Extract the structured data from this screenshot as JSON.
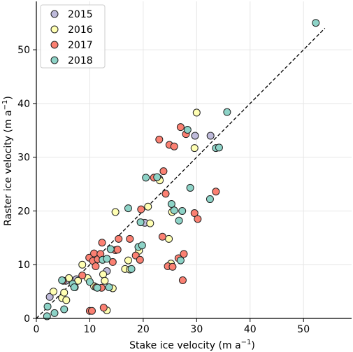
{
  "chart_data": {
    "type": "scatter",
    "xlabel": "Stake ice velocity (m a",
    "ylabel": "Raster ice velocity (m a",
    "unit_superscript": "−1",
    "unit_close": ")",
    "xlim": [
      0,
      59
    ],
    "ylim": [
      0,
      59
    ],
    "x_ticks": [
      0,
      10,
      20,
      30,
      40,
      50
    ],
    "y_ticks": [
      0,
      10,
      20,
      30,
      40,
      50
    ],
    "grid": true,
    "legend_position": "top-left",
    "reference_line": {
      "style": "dashed",
      "from": [
        0,
        0
      ],
      "to": [
        54,
        54
      ]
    },
    "series": [
      {
        "name": "2015",
        "color": "#bebada",
        "points": [
          [
            2.5,
            4
          ],
          [
            5.5,
            7
          ],
          [
            7.5,
            7.3
          ],
          [
            13.2,
            8.8
          ],
          [
            20.3,
            17.8
          ],
          [
            23,
            26
          ],
          [
            29.7,
            34
          ],
          [
            32.6,
            34
          ]
        ]
      },
      {
        "name": "2016",
        "color": "#ffffb3",
        "points": [
          [
            3.2,
            5
          ],
          [
            4.8,
            3.8
          ],
          [
            5.2,
            4.8
          ],
          [
            5.6,
            3.4
          ],
          [
            6.1,
            7.5
          ],
          [
            7.2,
            5.8
          ],
          [
            7.8,
            7
          ],
          [
            8.6,
            10
          ],
          [
            9.6,
            7.5
          ],
          [
            10.8,
            6
          ],
          [
            12.5,
            8.2
          ],
          [
            12.8,
            7
          ],
          [
            13.2,
            1.5
          ],
          [
            14.3,
            5.6
          ],
          [
            14.8,
            19.8
          ],
          [
            16.6,
            9.2
          ],
          [
            17.2,
            10.8
          ],
          [
            17.5,
            9.1
          ],
          [
            19.2,
            12.6
          ],
          [
            20.9,
            20.8
          ],
          [
            21.3,
            17.7
          ],
          [
            23.1,
            25.7
          ],
          [
            24.8,
            14.8
          ],
          [
            25.2,
            10.2
          ],
          [
            25.4,
            19.8
          ],
          [
            29.6,
            31.7
          ],
          [
            30,
            38.3
          ]
        ]
      },
      {
        "name": "2017",
        "color": "#fb8072",
        "points": [
          [
            5,
            7
          ],
          [
            8.6,
            8
          ],
          [
            9.9,
            11.3
          ],
          [
            10,
            1.4
          ],
          [
            10.4,
            1.4
          ],
          [
            10.6,
            10.7
          ],
          [
            10.8,
            12.1
          ],
          [
            11.1,
            9.7
          ],
          [
            11.2,
            5.8
          ],
          [
            11.5,
            11
          ],
          [
            12,
            12
          ],
          [
            12.2,
            5.7
          ],
          [
            12.3,
            14.1
          ],
          [
            12.6,
            2
          ],
          [
            14.3,
            10.5
          ],
          [
            14.8,
            12.7
          ],
          [
            15.2,
            12.8
          ],
          [
            15.4,
            14.8
          ],
          [
            17.5,
            14.8
          ],
          [
            18.6,
            11.7
          ],
          [
            19.4,
            10.9
          ],
          [
            19.6,
            20.3
          ],
          [
            22,
            26.2
          ],
          [
            23,
            33.3
          ],
          [
            23.6,
            15.2
          ],
          [
            23.8,
            27.4
          ],
          [
            24.2,
            23.2
          ],
          [
            24.6,
            9.7
          ],
          [
            24.9,
            32.3
          ],
          [
            25.5,
            9.6
          ],
          [
            25.8,
            32
          ],
          [
            26.6,
            11.2
          ],
          [
            27,
            35.6
          ],
          [
            27.4,
            7.1
          ],
          [
            27.6,
            12
          ],
          [
            28,
            34.3
          ],
          [
            29.6,
            19.6
          ],
          [
            30.2,
            18.5
          ],
          [
            33.6,
            23.6
          ]
        ]
      },
      {
        "name": "2018",
        "color": "#8dd3c7",
        "points": [
          [
            2,
            0.4
          ],
          [
            2.1,
            2.2
          ],
          [
            3.4,
            1
          ],
          [
            4.8,
            7.1
          ],
          [
            5.2,
            1.7
          ],
          [
            6.8,
            6.4
          ],
          [
            7.1,
            5.8
          ],
          [
            10,
            6.8
          ],
          [
            11.4,
            5.7
          ],
          [
            12.4,
            10.9
          ],
          [
            13.2,
            11.1
          ],
          [
            13.6,
            5.8
          ],
          [
            13.9,
            12.9
          ],
          [
            17.2,
            20.5
          ],
          [
            17.8,
            9.2
          ],
          [
            19.1,
            13.3
          ],
          [
            19.5,
            17.9
          ],
          [
            19.8,
            13.6
          ],
          [
            20.5,
            26.2
          ],
          [
            22.6,
            26.3
          ],
          [
            25.3,
            21.3
          ],
          [
            25.8,
            20.1
          ],
          [
            26.7,
            18.2
          ],
          [
            27,
            10.8
          ],
          [
            27.3,
            20
          ],
          [
            28.3,
            35.1
          ],
          [
            28.8,
            24.3
          ],
          [
            32.5,
            22.2
          ],
          [
            33.6,
            31.7
          ],
          [
            34.2,
            31.8
          ],
          [
            35.7,
            38.4
          ],
          [
            52.3,
            55
          ]
        ]
      }
    ]
  }
}
